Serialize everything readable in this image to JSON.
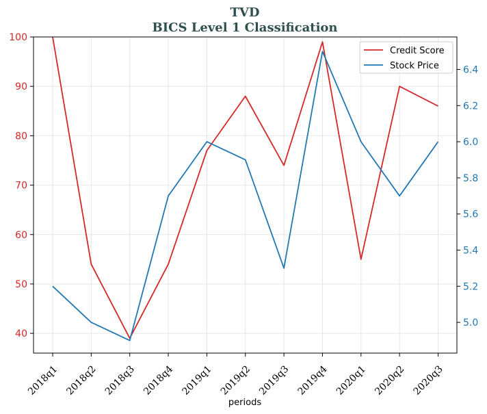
{
  "chart_data": {
    "type": "line",
    "title": "TVD",
    "subtitle": "BICS Level 1 Classification",
    "xlabel": "periods",
    "categories": [
      "2018q1",
      "2018q2",
      "2018q3",
      "2018q4",
      "2019q1",
      "2019q2",
      "2019q3",
      "2019q4",
      "2020q1",
      "2020q2",
      "2020q3"
    ],
    "series": [
      {
        "name": "Credit Score",
        "axis": "left",
        "color": "#d62728",
        "values": [
          100,
          54,
          39,
          54,
          77,
          88,
          74,
          99,
          55,
          90,
          86
        ]
      },
      {
        "name": "Stock Price",
        "axis": "right",
        "color": "#1f77b4",
        "values": [
          5.2,
          5.0,
          4.9,
          5.7,
          6.0,
          5.9,
          5.3,
          6.5,
          6.0,
          5.7,
          6.0
        ]
      }
    ],
    "ylim_left": [
      36,
      100
    ],
    "yticks_left": [
      40,
      50,
      60,
      70,
      80,
      90,
      100
    ],
    "ylim_right": [
      4.83,
      6.58
    ],
    "yticks_right": [
      5.0,
      5.2,
      5.4,
      5.6,
      5.8,
      6.0,
      6.2,
      6.4
    ],
    "grid": true,
    "legend_position": "top-right",
    "title_color": "#2f4f4f"
  }
}
